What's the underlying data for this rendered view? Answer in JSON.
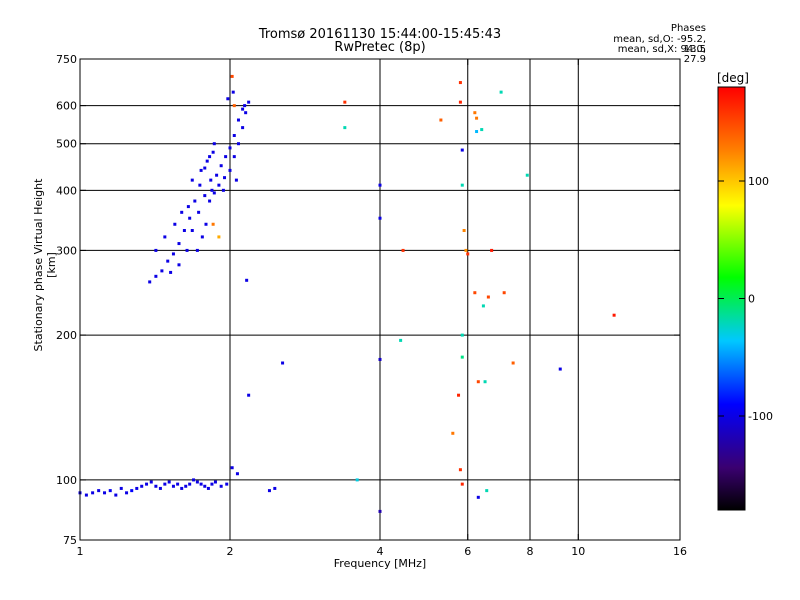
{
  "header": {
    "title_line1": "Tromsø 20161130 15:44:00-15:45:43",
    "title_line2": "RwPretec (8p)",
    "phases_title": "Phases",
    "phases_o": "mean, sd,O: -95.2, 13.5",
    "phases_x": "mean, sd,X:  94.0, 27.9"
  },
  "colorbar": {
    "unit": "[deg]",
    "range": [
      -180,
      180
    ],
    "ticks": [
      {
        "value": 100,
        "label": "100"
      },
      {
        "value": 0,
        "label": "0"
      },
      {
        "value": -100,
        "label": "-100"
      }
    ]
  },
  "chart_data": {
    "type": "scatter",
    "title": "Tromsø 20161130 15:44:00-15:45:43",
    "subtitle": "RwPretec (8p)",
    "xlabel": "Frequency [MHz]",
    "ylabel": "Stationary phase Virtual Height [km]",
    "x_scale": "log2",
    "y_scale": "log",
    "xlim": [
      1,
      16
    ],
    "ylim": [
      75,
      750
    ],
    "x_ticks": [
      1,
      2,
      4,
      6,
      8,
      10,
      16
    ],
    "y_ticks": [
      75,
      100,
      200,
      300,
      400,
      500,
      600,
      750
    ],
    "x_gridlines": [
      2,
      4,
      6,
      8,
      10
    ],
    "y_gridlines": [
      100,
      200,
      300,
      400,
      500,
      600
    ],
    "color_scale": "phase [deg], -180 to 180",
    "series": [
      {
        "points": [
          [
            1.0,
            94,
            -100
          ],
          [
            1.03,
            93,
            -100
          ],
          [
            1.06,
            94,
            -100
          ],
          [
            1.09,
            95,
            -100
          ],
          [
            1.12,
            94,
            -100
          ],
          [
            1.15,
            95,
            -95
          ],
          [
            1.18,
            93,
            -100
          ],
          [
            1.21,
            96,
            -100
          ],
          [
            1.24,
            94,
            -100
          ],
          [
            1.27,
            95,
            -90
          ],
          [
            1.3,
            96,
            -100
          ],
          [
            1.33,
            97,
            -100
          ],
          [
            1.36,
            98,
            -100
          ],
          [
            1.39,
            99,
            -100
          ],
          [
            1.42,
            97,
            -100
          ],
          [
            1.45,
            96,
            -100
          ],
          [
            1.48,
            98,
            -100
          ],
          [
            1.51,
            99,
            -100
          ],
          [
            1.54,
            97,
            -100
          ],
          [
            1.57,
            98,
            -100
          ],
          [
            1.6,
            96,
            -100
          ],
          [
            1.63,
            97,
            -100
          ],
          [
            1.66,
            98,
            -100
          ],
          [
            1.69,
            100,
            -100
          ],
          [
            1.72,
            99,
            -100
          ],
          [
            1.75,
            98,
            -100
          ],
          [
            1.78,
            97,
            -100
          ],
          [
            1.81,
            96,
            -100
          ],
          [
            1.84,
            98,
            -100
          ],
          [
            1.87,
            99,
            -100
          ],
          [
            1.92,
            97,
            -100
          ],
          [
            1.97,
            98,
            -100
          ],
          [
            2.02,
            106,
            -100
          ],
          [
            2.07,
            103,
            -100
          ],
          [
            2.4,
            95,
            -100
          ],
          [
            2.46,
            96,
            -100
          ],
          [
            1.38,
            258,
            -100
          ],
          [
            1.42,
            265,
            -100
          ],
          [
            1.46,
            272,
            -100
          ],
          [
            1.5,
            285,
            -100
          ],
          [
            1.54,
            295,
            -100
          ],
          [
            1.58,
            310,
            -100
          ],
          [
            1.62,
            330,
            -100
          ],
          [
            1.66,
            350,
            -100
          ],
          [
            1.7,
            380,
            -100
          ],
          [
            1.74,
            410,
            -100
          ],
          [
            1.78,
            445,
            -100
          ],
          [
            1.82,
            470,
            -100
          ],
          [
            1.86,
            500,
            -100
          ],
          [
            1.42,
            300,
            -100
          ],
          [
            1.48,
            320,
            -100
          ],
          [
            1.55,
            340,
            -100
          ],
          [
            1.6,
            360,
            -100
          ],
          [
            1.65,
            370,
            -100
          ],
          [
            1.72,
            300,
            -100
          ],
          [
            1.76,
            320,
            -100
          ],
          [
            1.79,
            340,
            -100
          ],
          [
            1.84,
            400,
            -100
          ],
          [
            1.52,
            270,
            -100
          ],
          [
            1.58,
            280,
            -100
          ],
          [
            1.64,
            300,
            -100
          ],
          [
            1.68,
            330,
            -100
          ],
          [
            1.73,
            360,
            -100
          ],
          [
            1.78,
            390,
            -100
          ],
          [
            1.83,
            420,
            -100
          ],
          [
            1.68,
            420,
            -100
          ],
          [
            1.75,
            440,
            -100
          ],
          [
            1.8,
            460,
            -100
          ],
          [
            1.85,
            480,
            -100
          ],
          [
            1.82,
            380,
            -100
          ],
          [
            1.86,
            395,
            -100
          ],
          [
            1.9,
            410,
            -100
          ],
          [
            1.95,
            425,
            -100
          ],
          [
            2.0,
            440,
            -100
          ],
          [
            2.04,
            470,
            -100
          ],
          [
            2.08,
            500,
            -100
          ],
          [
            2.12,
            540,
            -100
          ],
          [
            2.15,
            580,
            -100
          ],
          [
            2.18,
            610,
            -100
          ],
          [
            1.88,
            430,
            -100
          ],
          [
            1.92,
            450,
            -100
          ],
          [
            1.96,
            470,
            -100
          ],
          [
            2.0,
            490,
            -100
          ],
          [
            2.04,
            520,
            -100
          ],
          [
            2.08,
            560,
            -100
          ],
          [
            2.12,
            590,
            -100
          ],
          [
            1.98,
            620,
            -100
          ],
          [
            2.03,
            640,
            -100
          ],
          [
            2.14,
            600,
            -100
          ],
          [
            1.94,
            400,
            -100
          ],
          [
            2.06,
            420,
            -100
          ],
          [
            2.16,
            260,
            -100
          ],
          [
            2.55,
            175,
            -100
          ],
          [
            2.18,
            150,
            -100
          ],
          [
            4.0,
            410,
            -100
          ],
          [
            4.0,
            350,
            -100
          ],
          [
            4.0,
            178,
            -110
          ],
          [
            4.0,
            86,
            -120
          ],
          [
            3.4,
            540,
            -20
          ],
          [
            4.4,
            195,
            -20
          ],
          [
            5.85,
            485,
            -100
          ],
          [
            5.85,
            200,
            -20
          ],
          [
            5.85,
            180,
            -10
          ],
          [
            5.85,
            410,
            -20
          ],
          [
            6.25,
            530,
            -40
          ],
          [
            6.4,
            535,
            -20
          ],
          [
            6.45,
            230,
            -20
          ],
          [
            7.0,
            640,
            -20
          ],
          [
            6.5,
            160,
            -20
          ],
          [
            6.55,
            95,
            -20
          ],
          [
            6.3,
            92,
            -100
          ],
          [
            7.9,
            430,
            -20
          ],
          [
            9.2,
            170,
            -100
          ],
          [
            3.6,
            100,
            -30
          ],
          [
            2.02,
            690,
            150
          ],
          [
            3.4,
            610,
            160
          ],
          [
            5.3,
            560,
            140
          ],
          [
            5.8,
            670,
            160
          ],
          [
            5.8,
            610,
            165
          ],
          [
            6.2,
            580,
            130
          ],
          [
            6.25,
            565,
            130
          ],
          [
            6.2,
            245,
            150
          ],
          [
            6.6,
            240,
            150
          ],
          [
            5.75,
            150,
            165
          ],
          [
            5.8,
            105,
            160
          ],
          [
            5.85,
            98,
            165
          ],
          [
            6.7,
            300,
            170
          ],
          [
            7.1,
            245,
            150
          ],
          [
            7.4,
            175,
            140
          ],
          [
            5.6,
            125,
            130
          ],
          [
            6.0,
            295,
            160
          ],
          [
            4.45,
            300,
            160
          ],
          [
            11.8,
            220,
            170
          ],
          [
            6.3,
            160,
            150
          ],
          [
            1.85,
            340,
            130
          ],
          [
            1.9,
            320,
            110
          ],
          [
            5.95,
            300,
            120
          ],
          [
            5.9,
            330,
            125
          ],
          [
            2.04,
            600,
            140
          ]
        ]
      }
    ]
  }
}
